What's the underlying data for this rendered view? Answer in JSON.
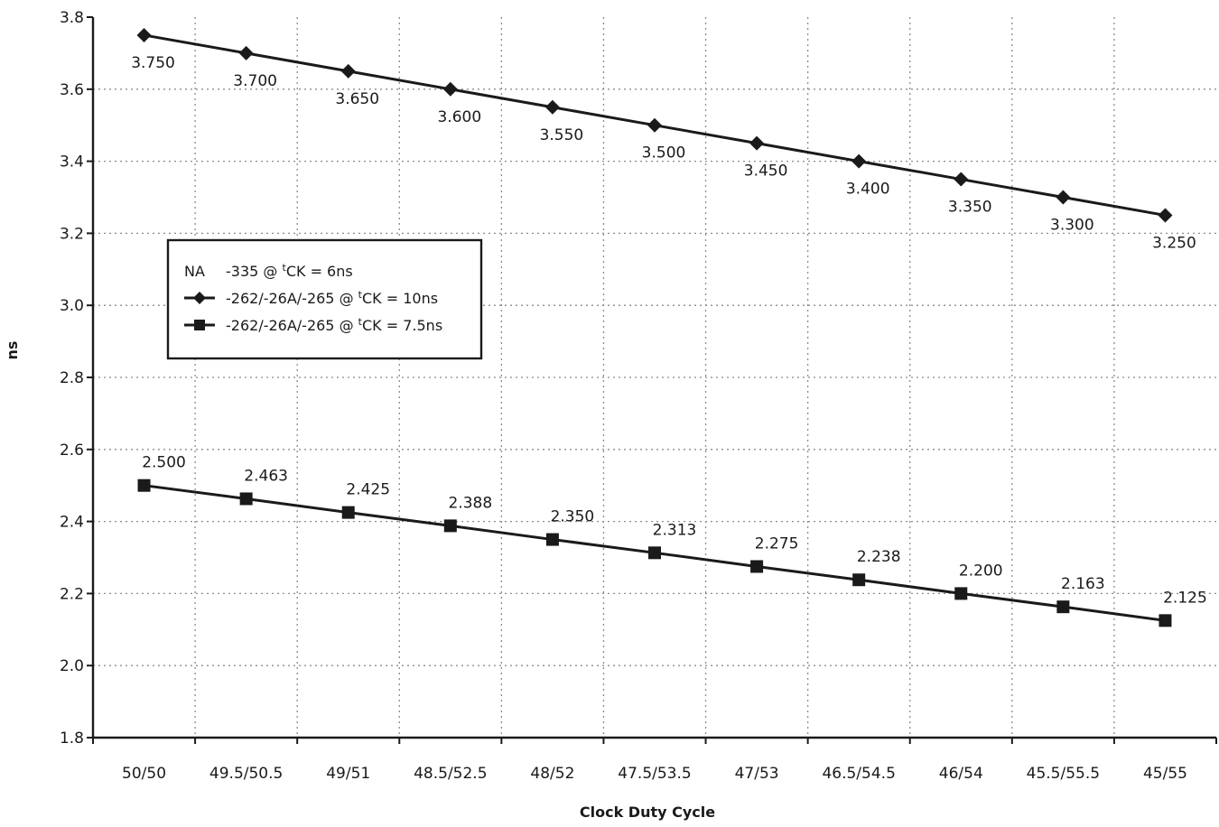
{
  "chart_data": {
    "type": "line",
    "xlabel": "Clock Duty Cycle",
    "ylabel": "ns",
    "ylim": [
      1.8,
      3.8
    ],
    "y_ticks": [
      "1.8",
      "2.0",
      "2.2",
      "2.4",
      "2.6",
      "2.8",
      "3.0",
      "3.2",
      "3.4",
      "3.6",
      "3.8"
    ],
    "categories": [
      "50/50",
      "49.5/50.5",
      "49/51",
      "48.5/52.5",
      "48/52",
      "47.5/53.5",
      "47/53",
      "46.5/54.5",
      "46/54",
      "45.5/55.5",
      "45/55"
    ],
    "grid": true,
    "legend": {
      "placement": "left-center",
      "na_label": "NA",
      "na_text": "-335 @ ",
      "na_super": "t",
      "na_suffix": "CK = 6ns"
    },
    "series": [
      {
        "name": "-262/-26A/-265 @ tCK = 10ns",
        "name_prefix": "-262/-26A/-265 @ ",
        "name_super": "t",
        "name_suffix": "CK = 10ns",
        "marker": "diamond",
        "values": [
          3.75,
          3.7,
          3.65,
          3.6,
          3.55,
          3.5,
          3.45,
          3.4,
          3.35,
          3.3,
          3.25
        ],
        "labels": [
          "3.750",
          "3.700",
          "3.650",
          "3.600",
          "3.550",
          "3.500",
          "3.450",
          "3.400",
          "3.350",
          "3.300",
          "3.250"
        ]
      },
      {
        "name": "-262/-26A/-265 @ tCK = 7.5ns",
        "name_prefix": "-262/-26A/-265 @ ",
        "name_super": "t",
        "name_suffix": "CK = 7.5ns",
        "marker": "square",
        "values": [
          2.5,
          2.463,
          2.425,
          2.388,
          2.35,
          2.313,
          2.275,
          2.238,
          2.2,
          2.163,
          2.125
        ],
        "labels": [
          "2.500",
          "2.463",
          "2.425",
          "2.388",
          "2.350",
          "2.313",
          "2.275",
          "2.238",
          "2.200",
          "2.163",
          "2.125"
        ]
      }
    ]
  },
  "colors": {
    "ink": "#1a1a1a",
    "grid": "#8c8c8c",
    "background": "#ffffff"
  }
}
